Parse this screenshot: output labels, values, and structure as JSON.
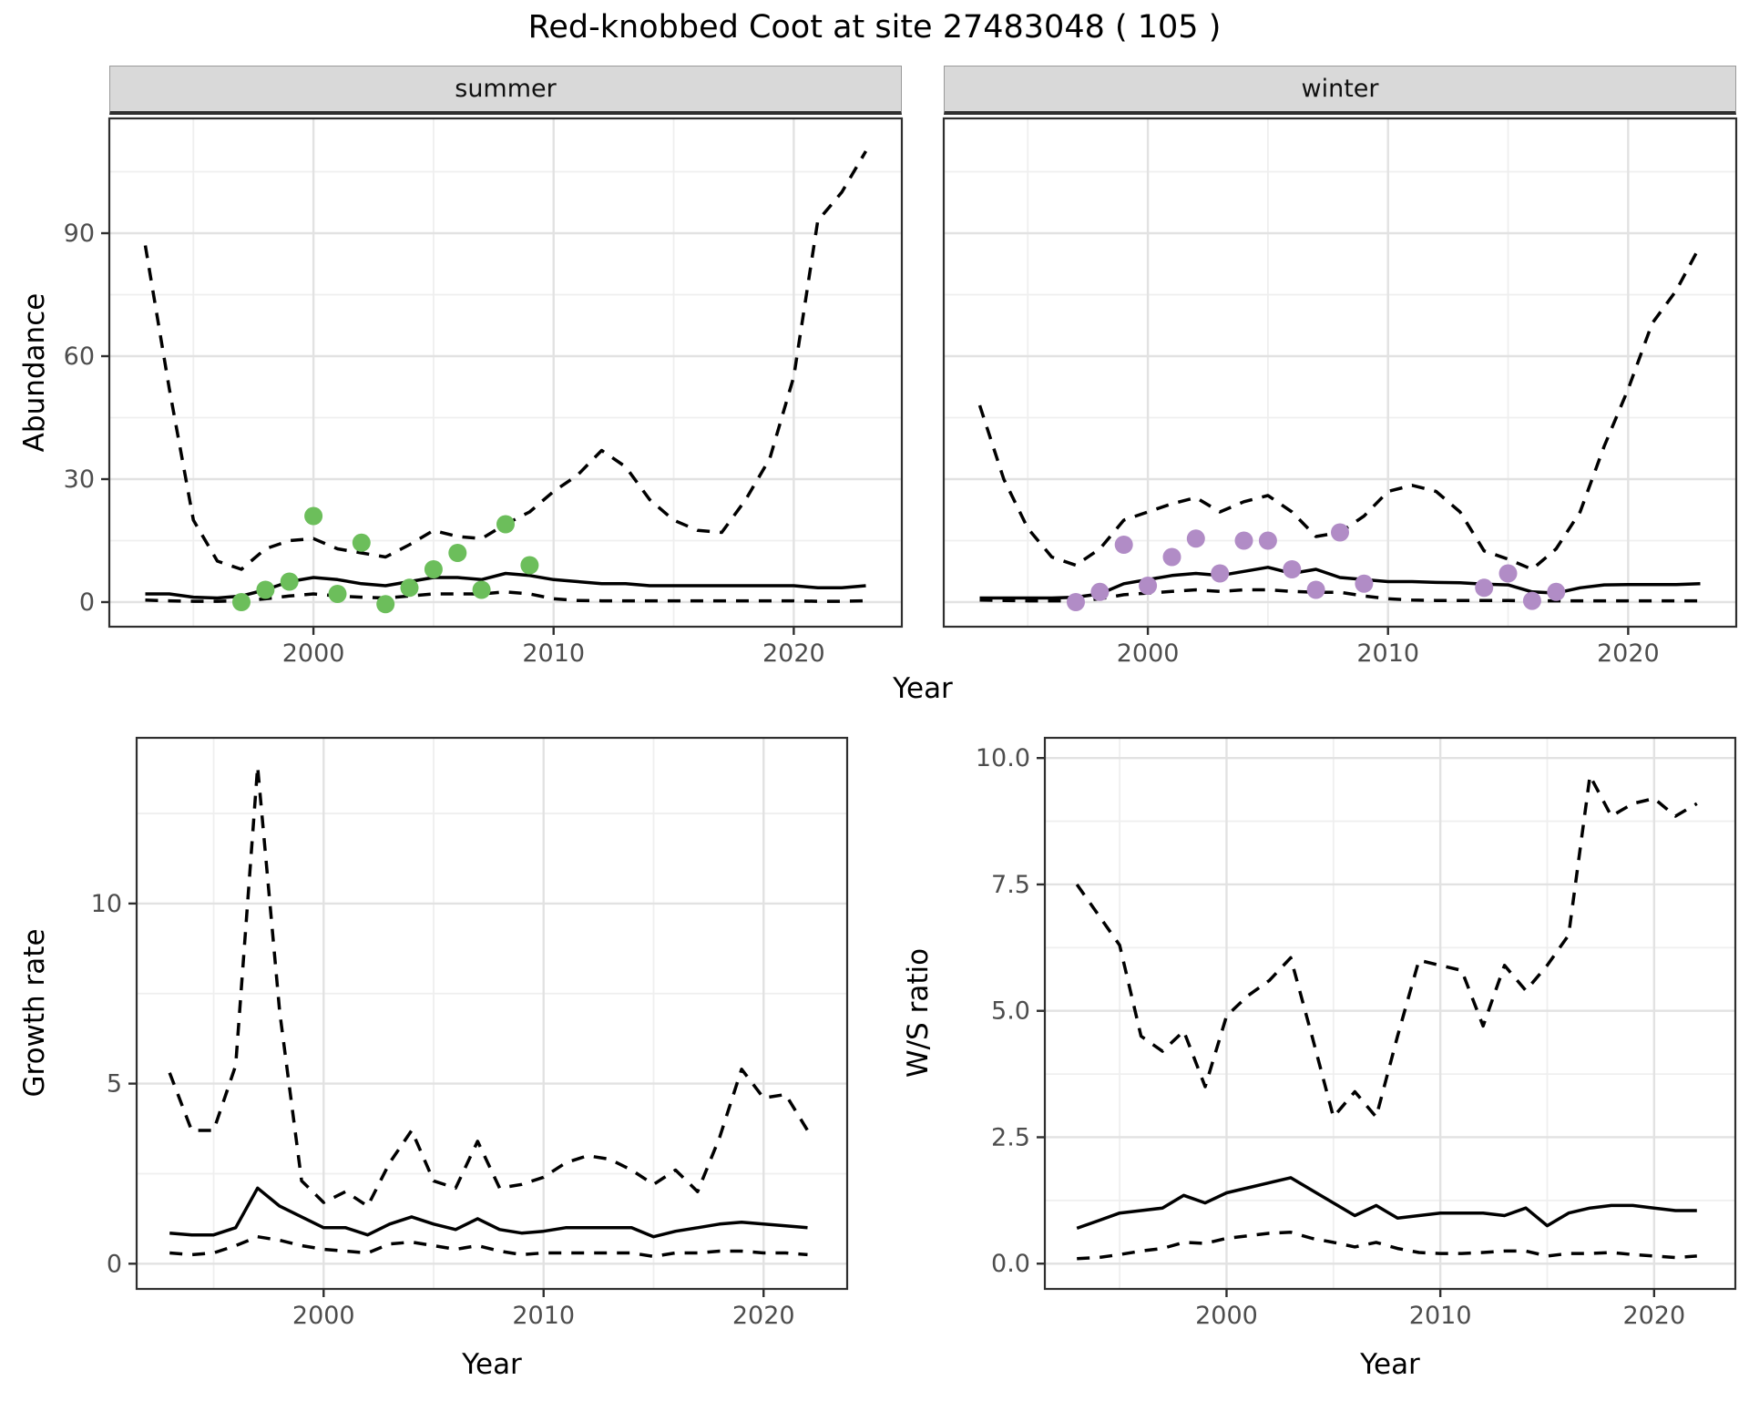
{
  "title": "Red-knobbed Coot at site 27483048 ( 105 )",
  "colors": {
    "line": "#000000",
    "summer_points": "#6CBE5B",
    "winter_points": "#B18CC6",
    "strip_background": "#D9D9D9",
    "grid_major": "#E2E2E2",
    "grid_minor": "#EFEFEF",
    "panel_border": "#2F2F2F",
    "tick_text": "#4D4D4D"
  },
  "chart_data": [
    {
      "id": "abundance-summer",
      "type": "line",
      "facet": "summer",
      "xlabel": "Year",
      "ylabel": "Abundance",
      "xlim": [
        1991.5,
        2024.5
      ],
      "ylim": [
        -6,
        118
      ],
      "xticks": [
        2000,
        2010,
        2020
      ],
      "xtick_labels": [
        "2000",
        "2010",
        "2020"
      ],
      "yticks": [
        0,
        30,
        60,
        90
      ],
      "ytick_labels": [
        "0",
        "30",
        "60",
        "90"
      ],
      "x_minor": [
        1995,
        2005,
        2015
      ],
      "y_minor": [
        15,
        45,
        75,
        105
      ],
      "grid": true,
      "legend": "none",
      "x": [
        1993,
        1994,
        1995,
        1996,
        1997,
        1998,
        1999,
        2000,
        2001,
        2002,
        2003,
        2004,
        2005,
        2006,
        2007,
        2008,
        2009,
        2010,
        2011,
        2012,
        2013,
        2014,
        2015,
        2016,
        2017,
        2018,
        2019,
        2020,
        2021,
        2022,
        2023
      ],
      "series": [
        {
          "name": "upper-credible-interval",
          "style": "dashed",
          "values": [
            87,
            52,
            20,
            10,
            8,
            13,
            15,
            15.5,
            13,
            12,
            11,
            14,
            17.5,
            16,
            15.5,
            19,
            22,
            27,
            31,
            37,
            33,
            25,
            20,
            17.5,
            17,
            25,
            35,
            55,
            93,
            100,
            110
          ]
        },
        {
          "name": "lower-credible-interval",
          "style": "dashed",
          "values": [
            0.5,
            0.3,
            0.2,
            0.2,
            0.3,
            0.8,
            1.5,
            2,
            1.5,
            1.2,
            1,
            1.5,
            2,
            2,
            2,
            2.5,
            2,
            0.8,
            0.4,
            0.3,
            0.3,
            0.3,
            0.3,
            0.3,
            0.3,
            0.3,
            0.3,
            0.3,
            0.2,
            0.2,
            0.3
          ]
        },
        {
          "name": "model-fit",
          "style": "solid",
          "values": [
            2,
            2,
            1.2,
            1,
            1.5,
            3,
            5,
            6,
            5.5,
            4.5,
            4,
            5,
            6,
            6,
            5.5,
            7,
            6.5,
            5.5,
            5,
            4.5,
            4.5,
            4,
            4,
            4,
            4,
            4,
            4,
            4,
            3.5,
            3.5,
            4
          ]
        }
      ],
      "points": {
        "name": "observed-summer-counts",
        "color": "#6CBE5B",
        "x": [
          1997,
          1998,
          1999,
          2000,
          2001,
          2002,
          2003,
          2004,
          2005,
          2006,
          2007,
          2008,
          2009
        ],
        "y": [
          0,
          3,
          5,
          21,
          2,
          14.5,
          -0.5,
          3.5,
          8,
          12,
          3,
          19,
          9
        ]
      }
    },
    {
      "id": "abundance-winter",
      "type": "line",
      "facet": "winter",
      "xlabel": "Year",
      "ylabel": "Abundance",
      "xlim": [
        1991.5,
        2024.5
      ],
      "ylim": [
        -6,
        118
      ],
      "xticks": [
        2000,
        2010,
        2020
      ],
      "xtick_labels": [
        "2000",
        "2010",
        "2020"
      ],
      "yticks": [
        0,
        30,
        60,
        90
      ],
      "ytick_labels": [],
      "x_minor": [
        1995,
        2005,
        2015
      ],
      "y_minor": [
        15,
        45,
        75,
        105
      ],
      "grid": true,
      "legend": "none",
      "x": [
        1993,
        1994,
        1995,
        1996,
        1997,
        1998,
        1999,
        2000,
        2001,
        2002,
        2003,
        2004,
        2005,
        2006,
        2007,
        2008,
        2009,
        2010,
        2011,
        2012,
        2013,
        2014,
        2015,
        2016,
        2017,
        2018,
        2019,
        2020,
        2021,
        2022,
        2023
      ],
      "series": [
        {
          "name": "upper-credible-interval",
          "style": "dashed",
          "values": [
            48,
            30,
            18,
            11,
            9,
            13,
            20,
            22,
            24,
            25.5,
            22,
            24.5,
            26,
            22,
            16,
            17,
            21,
            27,
            28.5,
            27,
            22,
            12.5,
            10.5,
            8,
            13,
            22,
            38,
            52,
            68,
            76,
            87
          ]
        },
        {
          "name": "lower-credible-interval",
          "style": "dashed",
          "values": [
            0.5,
            0.4,
            0.3,
            0.3,
            0.3,
            0.8,
            1.8,
            2.2,
            2.6,
            3,
            2.6,
            3,
            3,
            2.6,
            2.4,
            2.4,
            1.5,
            0.8,
            0.5,
            0.4,
            0.4,
            0.4,
            0.4,
            0.3,
            0.3,
            0.3,
            0.3,
            0.3,
            0.3,
            0.3,
            0.3
          ]
        },
        {
          "name": "model-fit",
          "style": "solid",
          "values": [
            1,
            1,
            1,
            1,
            1.2,
            2,
            4.5,
            5.5,
            6.5,
            7,
            6.5,
            7.5,
            8.5,
            7,
            8,
            6,
            5.5,
            5,
            5,
            4.8,
            4.7,
            4.4,
            4.2,
            2.5,
            2.2,
            3.5,
            4.2,
            4.3,
            4.3,
            4.3,
            4.5
          ]
        }
      ],
      "points": {
        "name": "observed-winter-counts",
        "color": "#B18CC6",
        "x": [
          1997,
          1998,
          1999,
          2000,
          2001,
          2002,
          2003,
          2004,
          2005,
          2006,
          2007,
          2008,
          2009,
          2014,
          2015,
          2016,
          2017
        ],
        "y": [
          0,
          2.5,
          14,
          4,
          11,
          15.5,
          7,
          15,
          15,
          8,
          3,
          17,
          4.5,
          3.5,
          7,
          0.3,
          2.5
        ]
      }
    },
    {
      "id": "growth-rate",
      "type": "line",
      "facet": "",
      "xlabel": "Year",
      "ylabel": "Growth rate",
      "xlim": [
        1991.5,
        2023.8
      ],
      "ylim": [
        -0.7,
        14.6
      ],
      "xticks": [
        2000,
        2010,
        2020
      ],
      "xtick_labels": [
        "2000",
        "2010",
        "2020"
      ],
      "yticks": [
        0,
        5,
        10
      ],
      "ytick_labels": [
        "0",
        "5",
        "10"
      ],
      "x_minor": [
        1995,
        2005,
        2015
      ],
      "y_minor": [
        2.5,
        7.5,
        12.5
      ],
      "grid": true,
      "legend": "none",
      "x": [
        1993,
        1994,
        1995,
        1996,
        1997,
        1998,
        1999,
        2000,
        2001,
        2002,
        2003,
        2004,
        2005,
        2006,
        2007,
        2008,
        2009,
        2010,
        2011,
        2012,
        2013,
        2014,
        2015,
        2016,
        2017,
        2018,
        2019,
        2020,
        2021,
        2022
      ],
      "series": [
        {
          "name": "upper-credible-interval",
          "style": "dashed",
          "values": [
            5.3,
            3.7,
            3.7,
            5.5,
            13.8,
            7,
            2.3,
            1.7,
            2,
            1.6,
            2.8,
            3.7,
            2.3,
            2.1,
            3.4,
            2.1,
            2.2,
            2.4,
            2.8,
            3,
            2.9,
            2.6,
            2.2,
            2.6,
            2,
            3.5,
            5.4,
            4.6,
            4.7,
            3.7
          ]
        },
        {
          "name": "lower-credible-interval",
          "style": "dashed",
          "values": [
            0.3,
            0.25,
            0.3,
            0.5,
            0.75,
            0.65,
            0.5,
            0.4,
            0.35,
            0.3,
            0.55,
            0.6,
            0.5,
            0.4,
            0.5,
            0.35,
            0.25,
            0.3,
            0.3,
            0.3,
            0.3,
            0.3,
            0.2,
            0.3,
            0.3,
            0.35,
            0.35,
            0.3,
            0.3,
            0.25
          ]
        },
        {
          "name": "model-fit",
          "style": "solid",
          "values": [
            0.85,
            0.8,
            0.8,
            1,
            2.1,
            1.6,
            1.3,
            1,
            1,
            0.8,
            1.1,
            1.3,
            1.1,
            0.95,
            1.25,
            0.95,
            0.85,
            0.9,
            1,
            1,
            1,
            1,
            0.75,
            0.9,
            1,
            1.1,
            1.15,
            1.1,
            1.05,
            1
          ]
        }
      ],
      "points": null
    },
    {
      "id": "ws-ratio",
      "type": "line",
      "facet": "",
      "xlabel": "Year",
      "ylabel": "W/S ratio",
      "xlim": [
        1991.5,
        2023.8
      ],
      "ylim": [
        -0.5,
        10.4
      ],
      "xticks": [
        2000,
        2010,
        2020
      ],
      "xtick_labels": [
        "2000",
        "2010",
        "2020"
      ],
      "yticks": [
        0,
        2.5,
        5,
        7.5,
        10
      ],
      "ytick_labels": [
        "0.0",
        "2.5",
        "5.0",
        "7.5",
        "10.0"
      ],
      "x_minor": [
        1995,
        2005,
        2015
      ],
      "y_minor": [
        1.25,
        3.75,
        6.25,
        8.75
      ],
      "grid": true,
      "legend": "none",
      "x": [
        1993,
        1994,
        1995,
        1996,
        1997,
        1998,
        1999,
        2000,
        2001,
        2002,
        2003,
        2004,
        2005,
        2006,
        2007,
        2008,
        2009,
        2010,
        2011,
        2012,
        2013,
        2014,
        2015,
        2016,
        2017,
        2018,
        2019,
        2020,
        2021,
        2022
      ],
      "series": [
        {
          "name": "upper-credible-interval",
          "style": "dashed",
          "values": [
            7.5,
            6.9,
            6.3,
            4.5,
            4.2,
            4.6,
            3.5,
            4.9,
            5.3,
            5.6,
            6.05,
            4.5,
            2.9,
            3.4,
            2.9,
            4.5,
            6,
            5.9,
            5.8,
            4.7,
            5.9,
            5.4,
            5.9,
            6.5,
            9.65,
            8.85,
            9.1,
            9.2,
            8.85,
            9.1
          ]
        },
        {
          "name": "lower-credible-interval",
          "style": "dashed",
          "values": [
            0.1,
            0.12,
            0.18,
            0.25,
            0.3,
            0.42,
            0.4,
            0.5,
            0.55,
            0.6,
            0.62,
            0.5,
            0.42,
            0.33,
            0.42,
            0.3,
            0.22,
            0.2,
            0.2,
            0.22,
            0.25,
            0.25,
            0.15,
            0.2,
            0.2,
            0.22,
            0.18,
            0.15,
            0.12,
            0.15
          ]
        },
        {
          "name": "model-fit",
          "style": "solid",
          "values": [
            0.7,
            0.85,
            1,
            1.05,
            1.1,
            1.35,
            1.2,
            1.4,
            1.5,
            1.6,
            1.7,
            1.45,
            1.2,
            0.95,
            1.15,
            0.9,
            0.95,
            1,
            1,
            1,
            0.95,
            1.1,
            0.75,
            1,
            1.1,
            1.15,
            1.15,
            1.1,
            1.05,
            1.05
          ]
        }
      ],
      "points": null
    }
  ]
}
